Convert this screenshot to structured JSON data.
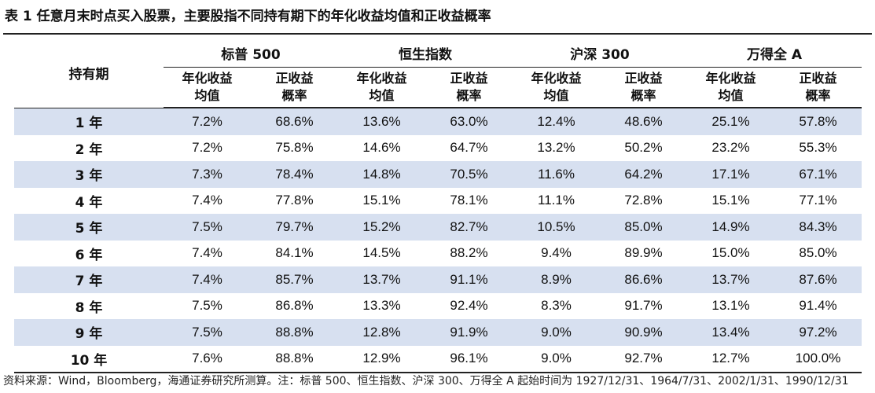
{
  "title": "表 1 任意月末时点买入股票，主要股指不同持有期下的年化收益均值和正收益概率",
  "table": {
    "period_header": "持有期",
    "groups": [
      "标普 500",
      "恒生指数",
      "沪深 300",
      "万得全 A"
    ],
    "sub_headers": [
      [
        "年化收益",
        "均值"
      ],
      [
        "正收益",
        "概率"
      ],
      [
        "年化收益",
        "均值"
      ],
      [
        "正收益",
        "概率"
      ],
      [
        "年化收益",
        "均值"
      ],
      [
        "正收益",
        "概率"
      ],
      [
        "年化收益",
        "均值"
      ],
      [
        "正收益",
        "概率"
      ]
    ],
    "rows": [
      {
        "period": "1 年",
        "values": [
          "7.2%",
          "68.6%",
          "13.6%",
          "63.0%",
          "12.4%",
          "48.6%",
          "25.1%",
          "57.8%"
        ]
      },
      {
        "period": "2 年",
        "values": [
          "7.2%",
          "75.8%",
          "14.6%",
          "64.7%",
          "13.2%",
          "50.2%",
          "23.2%",
          "55.3%"
        ]
      },
      {
        "period": "3 年",
        "values": [
          "7.3%",
          "78.4%",
          "14.8%",
          "70.5%",
          "11.6%",
          "64.2%",
          "17.1%",
          "67.1%"
        ]
      },
      {
        "period": "4 年",
        "values": [
          "7.4%",
          "77.8%",
          "15.1%",
          "78.1%",
          "11.1%",
          "72.8%",
          "15.1%",
          "77.1%"
        ]
      },
      {
        "period": "5 年",
        "values": [
          "7.5%",
          "79.7%",
          "15.2%",
          "82.7%",
          "10.5%",
          "85.0%",
          "14.9%",
          "84.3%"
        ]
      },
      {
        "period": "6 年",
        "values": [
          "7.4%",
          "84.1%",
          "14.5%",
          "88.2%",
          "9.4%",
          "89.9%",
          "15.0%",
          "85.0%"
        ]
      },
      {
        "period": "7 年",
        "values": [
          "7.4%",
          "85.7%",
          "13.7%",
          "91.1%",
          "8.9%",
          "86.6%",
          "13.7%",
          "87.6%"
        ]
      },
      {
        "period": "8 年",
        "values": [
          "7.5%",
          "86.8%",
          "13.3%",
          "92.4%",
          "8.3%",
          "91.7%",
          "13.1%",
          "91.4%"
        ]
      },
      {
        "period": "9 年",
        "values": [
          "7.5%",
          "88.8%",
          "12.8%",
          "91.9%",
          "9.0%",
          "90.9%",
          "13.4%",
          "97.2%"
        ]
      },
      {
        "period": "10 年",
        "values": [
          "7.6%",
          "88.8%",
          "12.9%",
          "96.1%",
          "9.0%",
          "92.7%",
          "12.7%",
          "100.0%"
        ]
      }
    ],
    "stripe_color": "#d7e0f0"
  },
  "source_note": "资料来源：Wind，Bloomberg，海通证券研究所测算。注：标普 500、恒生指数、沪深 300、万得全 A 起始时间为 1927/12/31、1964/7/31、2002/1/31、1990/12/31"
}
